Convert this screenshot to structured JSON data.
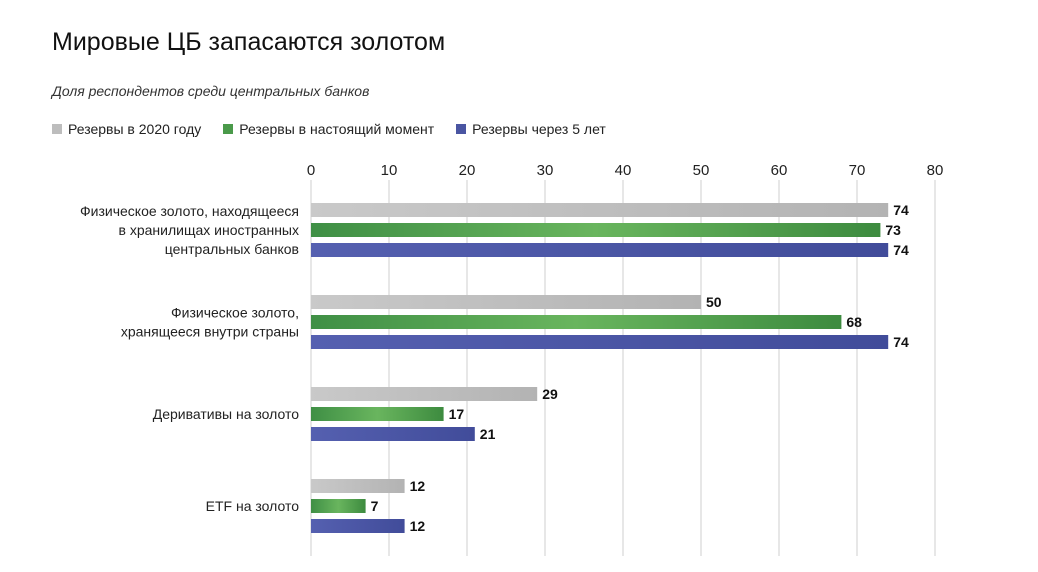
{
  "chart_data": {
    "type": "bar",
    "orientation": "horizontal",
    "title": "Мировые ЦБ запасаются золотом",
    "subtitle": "Доля респондентов среди центральных банков",
    "xlim": [
      0,
      80
    ],
    "xticks": [
      0,
      10,
      20,
      30,
      40,
      50,
      60,
      70,
      80
    ],
    "grid": true,
    "legend_position": "top-left",
    "categories": [
      [
        "Физическое золото, находящееся",
        "в хранилищах иностранных",
        "центральных банков"
      ],
      [
        "Физическое золото,",
        "хранящееся внутри страны"
      ],
      [
        "Деривативы на золото"
      ],
      [
        "ETF на золото"
      ]
    ],
    "series": [
      {
        "name": "Резервы в 2020 году",
        "color": "#bdbdbd",
        "values": [
          74,
          50,
          29,
          12
        ]
      },
      {
        "name": "Резервы в настоящий момент",
        "color": "#4a9a4a",
        "values": [
          73,
          68,
          17,
          7
        ]
      },
      {
        "name": "Резервы через 5 лет",
        "color": "#4a55a2",
        "values": [
          74,
          74,
          21,
          12
        ]
      }
    ]
  }
}
